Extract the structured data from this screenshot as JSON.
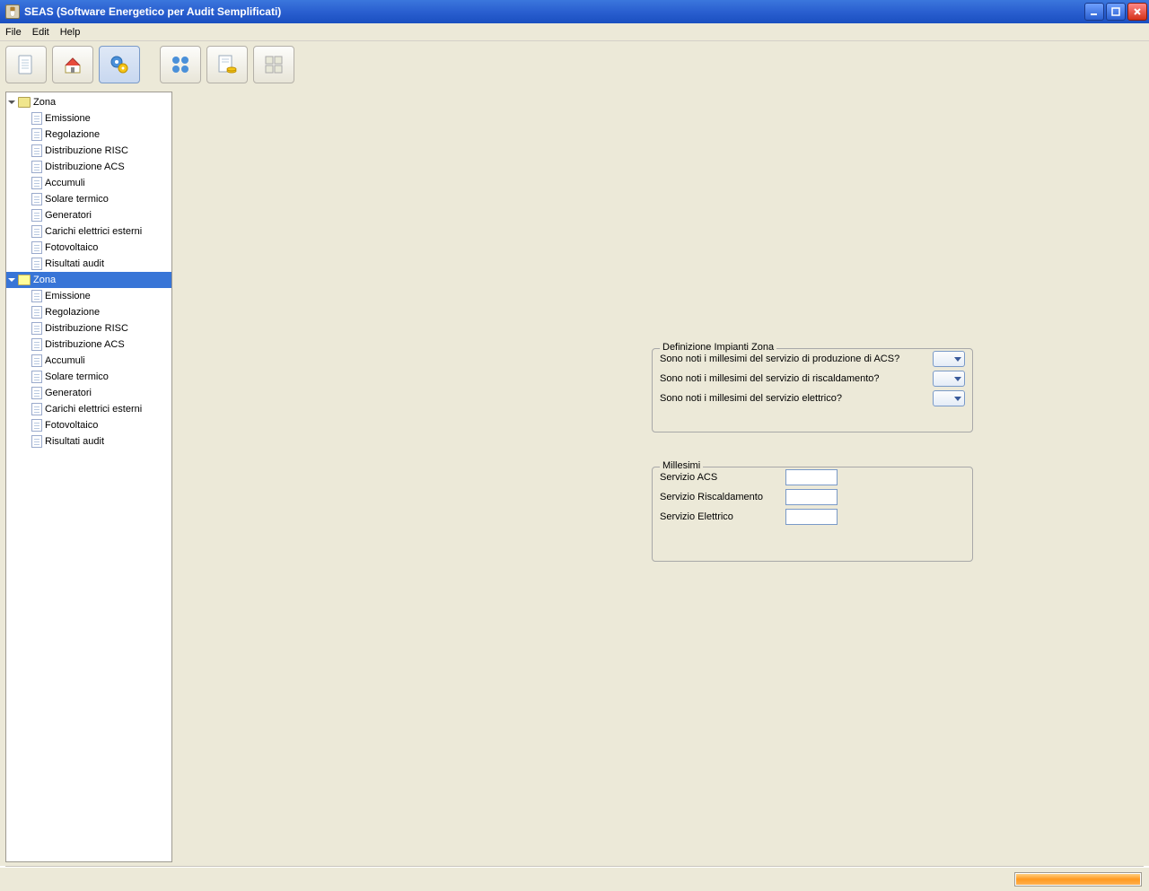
{
  "window": {
    "title": "SEAS (Software Energetico per Audit Semplificati)"
  },
  "menubar": {
    "items": [
      "File",
      "Edit",
      "Help"
    ]
  },
  "toolbar": {
    "buttons": [
      {
        "name": "new-doc",
        "active": false
      },
      {
        "name": "home",
        "active": false
      },
      {
        "name": "gears",
        "active": true
      },
      {
        "name": "grid-gears",
        "active": false
      },
      {
        "name": "doc-coins",
        "active": false
      },
      {
        "name": "grid-docs",
        "active": false
      }
    ]
  },
  "tree": {
    "zones": [
      {
        "label": "Zona",
        "selected": false,
        "items": [
          "Emissione",
          "Regolazione",
          "Distribuzione RISC",
          "Distribuzione ACS",
          "Accumuli",
          "Solare termico",
          "Generatori",
          "Carichi elettrici esterni",
          "Fotovoltaico",
          "Risultati audit"
        ]
      },
      {
        "label": "Zona",
        "selected": true,
        "items": [
          "Emissione",
          "Regolazione",
          "Distribuzione RISC",
          "Distribuzione ACS",
          "Accumuli",
          "Solare termico",
          "Generatori",
          "Carichi elettrici esterni",
          "Fotovoltaico",
          "Risultati audit"
        ]
      }
    ]
  },
  "panel_def": {
    "legend": "Definizione Impianti Zona",
    "rows": [
      {
        "label": "Sono noti i millesimi del servizio di produzione di ACS?"
      },
      {
        "label": "Sono noti i millesimi del servizio di riscaldamento?"
      },
      {
        "label": "Sono noti i millesimi del servizio elettrico?"
      }
    ]
  },
  "panel_mill": {
    "legend": "Millesimi",
    "rows": [
      {
        "label": "Servizio ACS",
        "value": ""
      },
      {
        "label": "Servizio Riscaldamento",
        "value": ""
      },
      {
        "label": "Servizio Elettrico",
        "value": ""
      }
    ]
  },
  "progress_pct": 100
}
